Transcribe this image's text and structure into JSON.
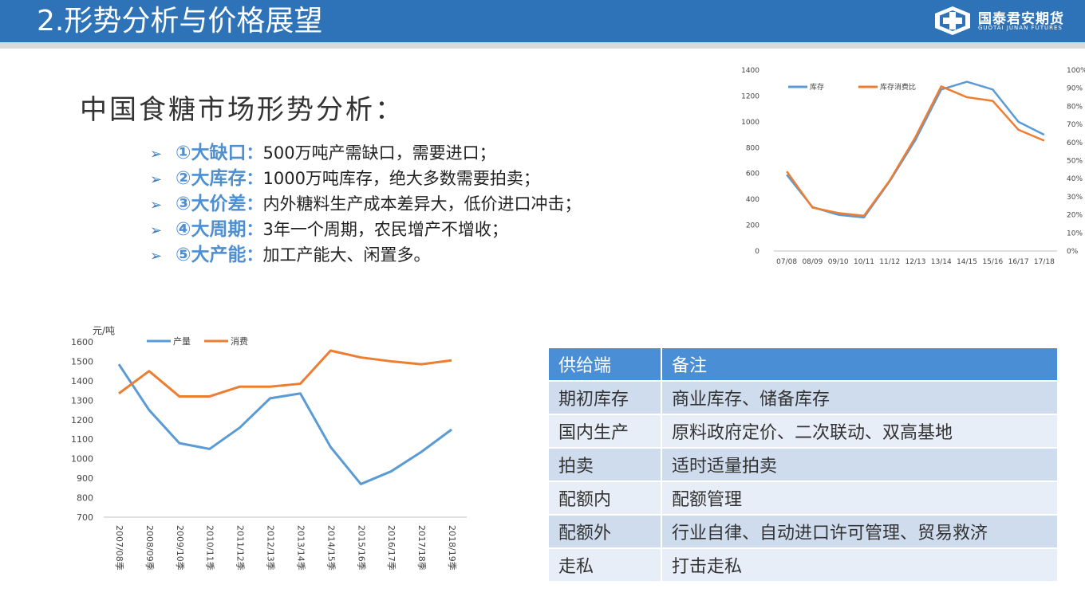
{
  "header": {
    "title": "2.形势分析与价格展望",
    "logo_cn": "国泰君安期货",
    "logo_en": "GUOTAI JUNAN FUTURES",
    "bg_color": "#2e73b8"
  },
  "section_title": "中国食糖市场形势分析：",
  "bullets": [
    {
      "key": "①大缺口",
      "sep": "：",
      "desc": "500万吨产需缺口，需要进口；"
    },
    {
      "key": "②大库存",
      "sep": "：",
      "desc": "1000万吨库存，绝大多数需要拍卖；"
    },
    {
      "key": "③大价差",
      "sep": "：",
      "desc": "内外糖料生产成本差异大，低价进口冲击；"
    },
    {
      "key": "④大周期",
      "sep": "：",
      "desc": "3年一个周期，农民增产不增收；"
    },
    {
      "key": "⑤大产能",
      "sep": "：",
      "desc": "加工产能大、闲置多。"
    }
  ],
  "chart_data": [
    {
      "type": "line",
      "x": [
        "07/08",
        "08/09",
        "09/10",
        "10/11",
        "11/12",
        "12/13",
        "13/14",
        "14/15",
        "15/16",
        "16/17",
        "17/18"
      ],
      "series": [
        {
          "name": "库存",
          "axis": "left",
          "color": "#5b9bd5",
          "values": [
            590,
            340,
            280,
            260,
            540,
            860,
            1250,
            1310,
            1250,
            1000,
            900
          ]
        },
        {
          "name": "库存消费比",
          "axis": "right",
          "color": "#ed7d31",
          "values": [
            44,
            24,
            21,
            19.5,
            39,
            63,
            91,
            85,
            83,
            67,
            61
          ]
        }
      ],
      "yticks_left": [
        "0",
        "200",
        "400",
        "600",
        "800",
        "1000",
        "1200",
        "1400"
      ],
      "yticks_right": [
        "0%",
        "10%",
        "20%",
        "30%",
        "40%",
        "50%",
        "60%",
        "70%",
        "80%",
        "90%",
        "100%"
      ],
      "ylim_left": [
        0,
        1400
      ],
      "ylim_right": [
        0,
        100
      ],
      "legend": "top-left"
    },
    {
      "type": "line",
      "ylabel": "元/吨",
      "x": [
        "2007/08季",
        "2008/09季",
        "2009/10季",
        "2010/11季",
        "2011/12季",
        "2012/13季",
        "2013/14季",
        "2014/15季",
        "2015/16季",
        "2016/17季",
        "2017/18季",
        "2018/19季"
      ],
      "series": [
        {
          "name": "产量",
          "color": "#5b9bd5",
          "values": [
            1485,
            1250,
            1080,
            1050,
            1160,
            1310,
            1335,
            1060,
            870,
            935,
            1035,
            1150
          ]
        },
        {
          "name": "消费",
          "color": "#ed7d31",
          "values": [
            1335,
            1450,
            1320,
            1320,
            1370,
            1370,
            1385,
            1555,
            1520,
            1500,
            1485,
            1505
          ]
        }
      ],
      "yticks": [
        "700",
        "800",
        "900",
        "1000",
        "1100",
        "1200",
        "1300",
        "1400",
        "1500",
        "1600"
      ],
      "ylim": [
        700,
        1600
      ],
      "legend": "top"
    }
  ],
  "table": {
    "headers": [
      "供给端",
      "备注"
    ],
    "rows": [
      [
        "期初库存",
        "商业库存、储备库存"
      ],
      [
        "国内生产",
        "原料政府定价、二次联动、双高基地"
      ],
      [
        "拍卖",
        "适时适量拍卖"
      ],
      [
        "配额内",
        "配额管理"
      ],
      [
        "配额外",
        "行业自律、自动进口许可管理、贸易救济"
      ],
      [
        "走私",
        "打击走私"
      ]
    ]
  }
}
